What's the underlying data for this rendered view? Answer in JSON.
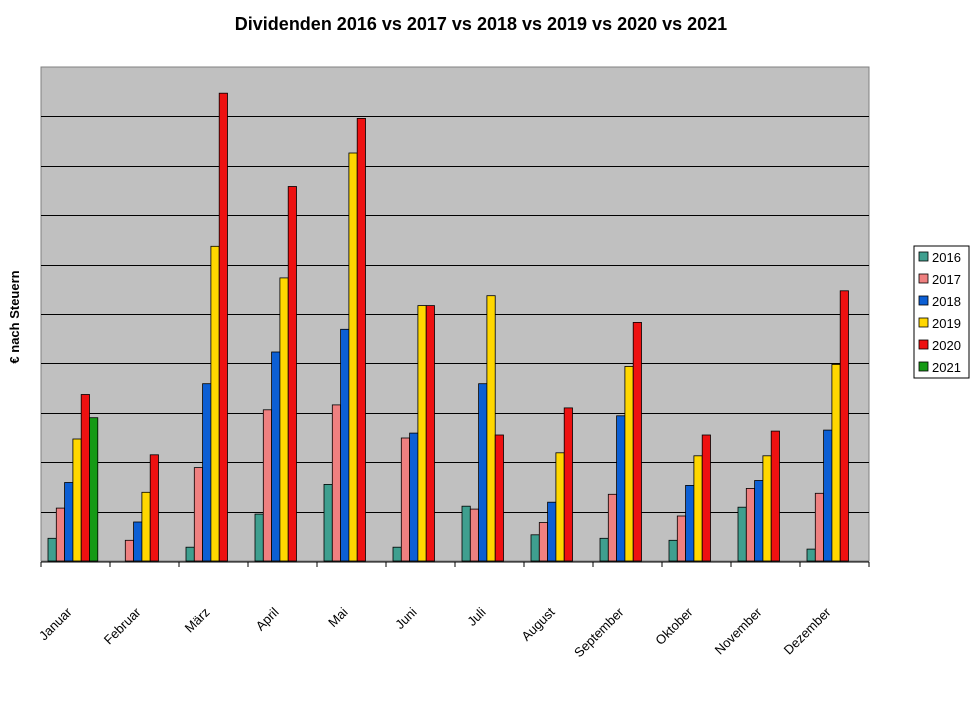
{
  "chart_data": {
    "type": "bar",
    "title": "Dividenden 2016 vs 2017 vs 2018 vs 2019 vs 2020 vs 2021",
    "xlabel": "",
    "ylabel": "€ nach Steuern",
    "ylim": [
      0,
      100
    ],
    "grid": true,
    "legend_position": "right",
    "background_color": "#c0c0c0",
    "categories": [
      "Januar",
      "Februar",
      "März",
      "April",
      "Mai",
      "Juni",
      "Juli",
      "August",
      "September",
      "Oktober",
      "November",
      "Dezember"
    ],
    "series": [
      {
        "name": "2016",
        "color": "#3f9f8f",
        "values": [
          4.6,
          0,
          2.8,
          9.5,
          15.5,
          2.8,
          11.1,
          5.3,
          4.6,
          4.2,
          10.9,
          2.4
        ]
      },
      {
        "name": "2017",
        "color": "#ef8080",
        "values": [
          10.7,
          4.2,
          18.9,
          30.6,
          31.6,
          24.9,
          10.5,
          7.8,
          13.5,
          9.1,
          14.7,
          13.7
        ]
      },
      {
        "name": "2018",
        "color": "#0c5fd4",
        "values": [
          15.9,
          7.9,
          35.9,
          42.3,
          46.9,
          25.9,
          35.9,
          11.9,
          29.4,
          15.3,
          16.3,
          26.5
        ]
      },
      {
        "name": "2019",
        "color": "#ffd700",
        "values": [
          24.7,
          13.9,
          63.7,
          57.3,
          82.6,
          51.7,
          53.7,
          21.9,
          39.4,
          21.3,
          21.3,
          39.8
        ]
      },
      {
        "name": "2020",
        "color": "#ee1111",
        "values": [
          33.7,
          21.5,
          94.7,
          75.8,
          89.6,
          51.7,
          25.5,
          31.0,
          48.3,
          25.5,
          26.3,
          54.7
        ]
      },
      {
        "name": "2021",
        "color": "#169a16",
        "values": [
          29.0,
          0,
          0,
          0,
          0,
          0,
          0,
          0,
          0,
          0,
          0,
          0
        ]
      }
    ]
  }
}
